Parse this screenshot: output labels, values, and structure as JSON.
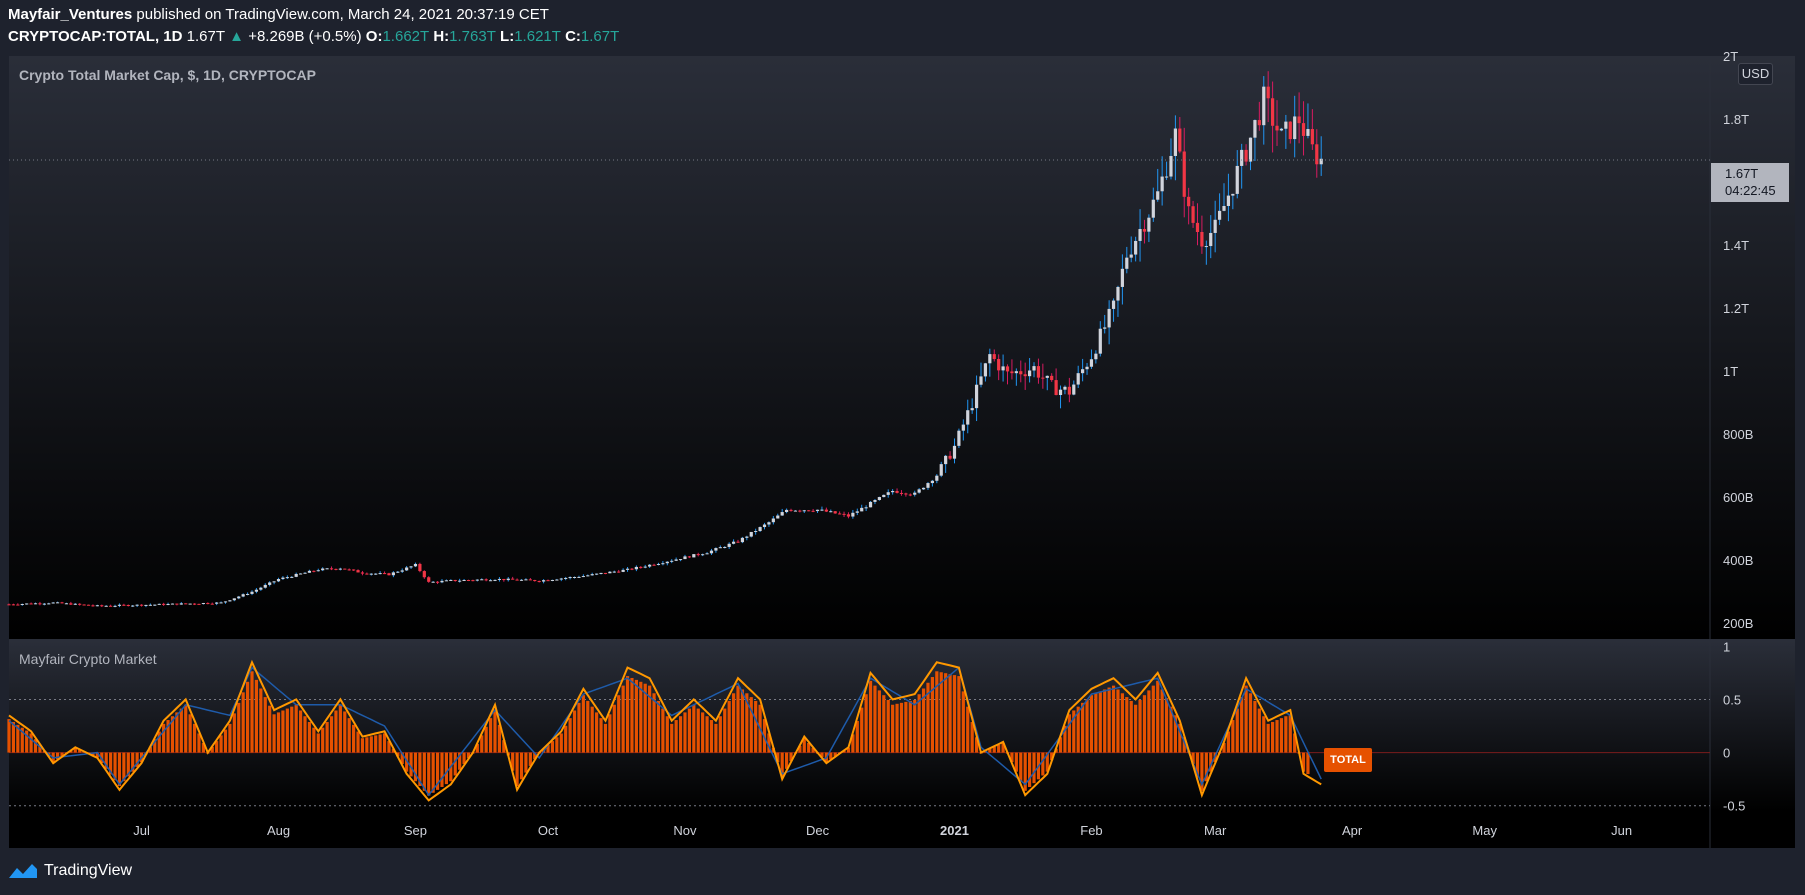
{
  "header": {
    "author": "Mayfair_Ventures",
    "published_text": "published on TradingView.com, March 24, 2021 20:37:19 CET",
    "symbol": "CRYPTOCAP:TOTAL, 1D",
    "last": "1.67T",
    "change_arrow": "▲",
    "change": "+8.269B (+0.5%)",
    "o_label": "O:",
    "o": "1.662T",
    "h_label": "H:",
    "h": "1.763T",
    "l_label": "L:",
    "l": "1.621T",
    "c_label": "C:",
    "c": "1.67T"
  },
  "main_title": "Crypto Total Market Cap, $, 1D, CRYPTOCAP",
  "indicator_title": "Mayfair Crypto Market",
  "currency_button": "USD",
  "price_tag": {
    "price": "1.67T",
    "countdown": "04:22:45"
  },
  "indicator_tag": "TOTAL",
  "brand": "TradingView",
  "colors": {
    "up": "#d1d4dc",
    "up_wick": "#2196f3",
    "down": "#f23645",
    "down_wick": "#d81b60",
    "hist": "#e65100",
    "line_orange": "#ff9800",
    "line_blue": "#1e5baa",
    "background": "#1e222d"
  },
  "chart_data": [
    {
      "type": "candlestick",
      "title": "Crypto Total Market Cap, $, 1D, CRYPTOCAP",
      "y_ticks": [
        "200B",
        "400B",
        "600B",
        "800B",
        "1T",
        "1.2T",
        "1.4T",
        "1.8T",
        "2T"
      ],
      "y_tick_values": [
        200,
        400,
        600,
        800,
        1000,
        1200,
        1400,
        1800,
        2000
      ],
      "ylim": [
        150,
        2000
      ],
      "y_unit": "B USD",
      "x_ticks": [
        "Jul",
        "Aug",
        "Sep",
        "Oct",
        "Nov",
        "Dec",
        "2021",
        "Feb",
        "Mar",
        "Apr",
        "May",
        "Jun"
      ],
      "x_tick_days": [
        30,
        61,
        92,
        122,
        153,
        183,
        214,
        245,
        273,
        304,
        334,
        365
      ],
      "xlim": [
        0,
        385
      ],
      "close_series": [
        {
          "day": 0,
          "close": 260
        },
        {
          "day": 10,
          "close": 265
        },
        {
          "day": 20,
          "close": 255
        },
        {
          "day": 30,
          "close": 258
        },
        {
          "day": 40,
          "close": 262
        },
        {
          "day": 48,
          "close": 265
        },
        {
          "day": 55,
          "close": 300
        },
        {
          "day": 61,
          "close": 340
        },
        {
          "day": 70,
          "close": 370
        },
        {
          "day": 75,
          "close": 375
        },
        {
          "day": 80,
          "close": 360
        },
        {
          "day": 86,
          "close": 355
        },
        {
          "day": 92,
          "close": 385
        },
        {
          "day": 95,
          "close": 330
        },
        {
          "day": 100,
          "close": 335
        },
        {
          "day": 110,
          "close": 340
        },
        {
          "day": 120,
          "close": 335
        },
        {
          "day": 130,
          "close": 350
        },
        {
          "day": 140,
          "close": 370
        },
        {
          "day": 150,
          "close": 400
        },
        {
          "day": 158,
          "close": 425
        },
        {
          "day": 165,
          "close": 460
        },
        {
          "day": 172,
          "close": 520
        },
        {
          "day": 176,
          "close": 560
        },
        {
          "day": 183,
          "close": 560
        },
        {
          "day": 190,
          "close": 540
        },
        {
          "day": 195,
          "close": 580
        },
        {
          "day": 200,
          "close": 620
        },
        {
          "day": 205,
          "close": 610
        },
        {
          "day": 210,
          "close": 670
        },
        {
          "day": 214,
          "close": 760
        },
        {
          "day": 218,
          "close": 900
        },
        {
          "day": 222,
          "close": 1050
        },
        {
          "day": 226,
          "close": 990
        },
        {
          "day": 232,
          "close": 1010
        },
        {
          "day": 236,
          "close": 950
        },
        {
          "day": 240,
          "close": 935
        },
        {
          "day": 245,
          "close": 1050
        },
        {
          "day": 250,
          "close": 1200
        },
        {
          "day": 253,
          "close": 1370
        },
        {
          "day": 256,
          "close": 1450
        },
        {
          "day": 260,
          "close": 1560
        },
        {
          "day": 264,
          "close": 1750
        },
        {
          "day": 267,
          "close": 1500
        },
        {
          "day": 270,
          "close": 1420
        },
        {
          "day": 273,
          "close": 1450
        },
        {
          "day": 276,
          "close": 1560
        },
        {
          "day": 280,
          "close": 1700
        },
        {
          "day": 284,
          "close": 1860
        },
        {
          "day": 288,
          "close": 1740
        },
        {
          "day": 292,
          "close": 1800
        },
        {
          "day": 295,
          "close": 1700
        },
        {
          "day": 297,
          "close": 1670
        }
      ],
      "last_price": "1.67T",
      "last_value": 1670
    },
    {
      "type": "line",
      "title": "Mayfair Crypto Market",
      "y_ticks": [
        "-0.5",
        "0",
        "0.5",
        "1"
      ],
      "y_tick_values": [
        -0.5,
        0,
        0.5,
        1
      ],
      "ylim": [
        -0.55,
        1.05
      ],
      "reference_lines": [
        0.5,
        0,
        -0.5
      ],
      "series": [
        {
          "color": "#ff9800",
          "points": [
            {
              "day": 0,
              "value": 0.35
            },
            {
              "day": 5,
              "value": 0.2
            },
            {
              "day": 10,
              "value": -0.1
            },
            {
              "day": 15,
              "value": 0.05
            },
            {
              "day": 20,
              "value": -0.05
            },
            {
              "day": 25,
              "value": -0.35
            },
            {
              "day": 30,
              "value": -0.1
            },
            {
              "day": 35,
              "value": 0.3
            },
            {
              "day": 40,
              "value": 0.5
            },
            {
              "day": 45,
              "value": 0.0
            },
            {
              "day": 50,
              "value": 0.3
            },
            {
              "day": 55,
              "value": 0.85
            },
            {
              "day": 60,
              "value": 0.4
            },
            {
              "day": 65,
              "value": 0.5
            },
            {
              "day": 70,
              "value": 0.2
            },
            {
              "day": 75,
              "value": 0.5
            },
            {
              "day": 80,
              "value": 0.15
            },
            {
              "day": 85,
              "value": 0.2
            },
            {
              "day": 90,
              "value": -0.2
            },
            {
              "day": 95,
              "value": -0.45
            },
            {
              "day": 100,
              "value": -0.3
            },
            {
              "day": 105,
              "value": 0.0
            },
            {
              "day": 110,
              "value": 0.45
            },
            {
              "day": 115,
              "value": -0.35
            },
            {
              "day": 120,
              "value": 0.0
            },
            {
              "day": 125,
              "value": 0.2
            },
            {
              "day": 130,
              "value": 0.6
            },
            {
              "day": 135,
              "value": 0.3
            },
            {
              "day": 140,
              "value": 0.8
            },
            {
              "day": 145,
              "value": 0.7
            },
            {
              "day": 150,
              "value": 0.3
            },
            {
              "day": 155,
              "value": 0.5
            },
            {
              "day": 160,
              "value": 0.3
            },
            {
              "day": 165,
              "value": 0.7
            },
            {
              "day": 170,
              "value": 0.5
            },
            {
              "day": 175,
              "value": -0.25
            },
            {
              "day": 180,
              "value": 0.15
            },
            {
              "day": 185,
              "value": -0.1
            },
            {
              "day": 190,
              "value": 0.05
            },
            {
              "day": 195,
              "value": 0.75
            },
            {
              "day": 200,
              "value": 0.5
            },
            {
              "day": 205,
              "value": 0.55
            },
            {
              "day": 210,
              "value": 0.85
            },
            {
              "day": 215,
              "value": 0.8
            },
            {
              "day": 220,
              "value": 0.0
            },
            {
              "day": 225,
              "value": 0.1
            },
            {
              "day": 230,
              "value": -0.4
            },
            {
              "day": 235,
              "value": -0.2
            },
            {
              "day": 240,
              "value": 0.4
            },
            {
              "day": 245,
              "value": 0.6
            },
            {
              "day": 250,
              "value": 0.7
            },
            {
              "day": 255,
              "value": 0.5
            },
            {
              "day": 260,
              "value": 0.75
            },
            {
              "day": 265,
              "value": 0.3
            },
            {
              "day": 270,
              "value": -0.4
            },
            {
              "day": 275,
              "value": 0.1
            },
            {
              "day": 280,
              "value": 0.7
            },
            {
              "day": 285,
              "value": 0.3
            },
            {
              "day": 290,
              "value": 0.4
            },
            {
              "day": 293,
              "value": -0.2
            },
            {
              "day": 297,
              "value": -0.3
            }
          ]
        },
        {
          "color": "#1e5baa",
          "points": [
            {
              "day": 0,
              "value": 0.3
            },
            {
              "day": 10,
              "value": -0.05
            },
            {
              "day": 20,
              "value": 0.0
            },
            {
              "day": 25,
              "value": -0.3
            },
            {
              "day": 30,
              "value": -0.05
            },
            {
              "day": 40,
              "value": 0.45
            },
            {
              "day": 50,
              "value": 0.35
            },
            {
              "day": 55,
              "value": 0.8
            },
            {
              "day": 65,
              "value": 0.45
            },
            {
              "day": 75,
              "value": 0.45
            },
            {
              "day": 85,
              "value": 0.25
            },
            {
              "day": 95,
              "value": -0.4
            },
            {
              "day": 110,
              "value": 0.4
            },
            {
              "day": 120,
              "value": -0.05
            },
            {
              "day": 130,
              "value": 0.55
            },
            {
              "day": 140,
              "value": 0.7
            },
            {
              "day": 150,
              "value": 0.35
            },
            {
              "day": 165,
              "value": 0.65
            },
            {
              "day": 175,
              "value": -0.2
            },
            {
              "day": 185,
              "value": -0.05
            },
            {
              "day": 195,
              "value": 0.7
            },
            {
              "day": 205,
              "value": 0.45
            },
            {
              "day": 215,
              "value": 0.8
            },
            {
              "day": 220,
              "value": 0.05
            },
            {
              "day": 230,
              "value": -0.3
            },
            {
              "day": 245,
              "value": 0.55
            },
            {
              "day": 260,
              "value": 0.7
            },
            {
              "day": 270,
              "value": -0.3
            },
            {
              "day": 280,
              "value": 0.6
            },
            {
              "day": 290,
              "value": 0.35
            },
            {
              "day": 297,
              "value": -0.25
            }
          ]
        }
      ]
    }
  ]
}
